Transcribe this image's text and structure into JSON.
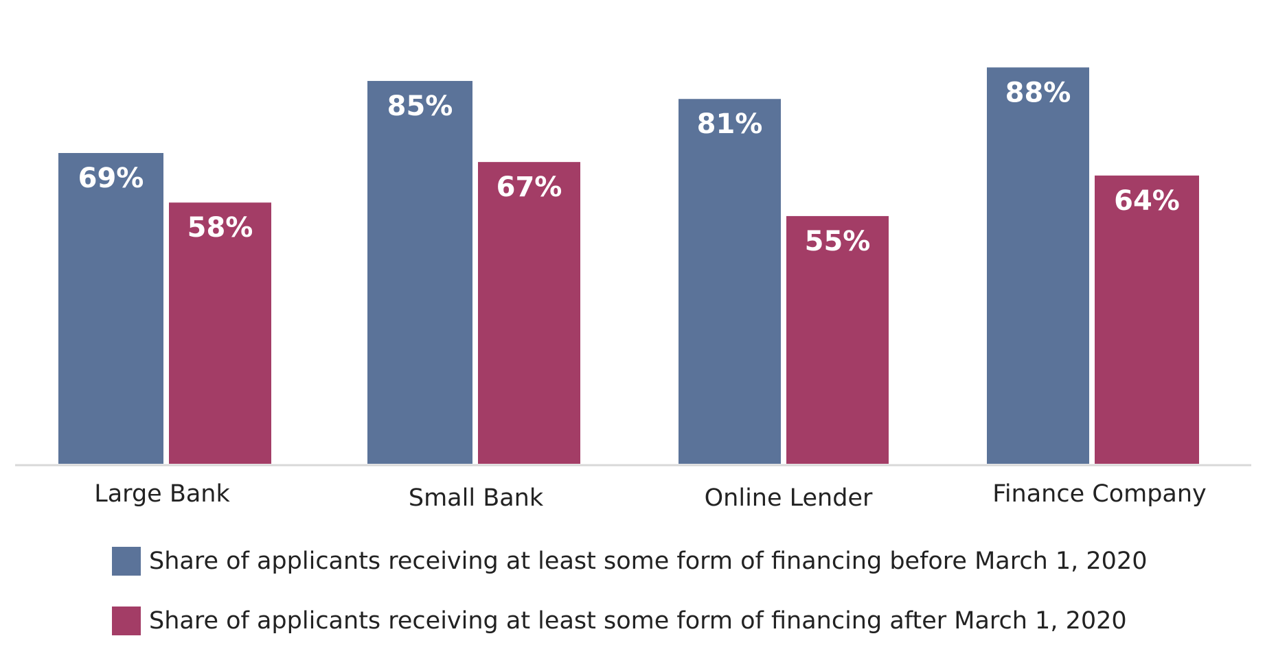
{
  "chart_data": {
    "type": "bar",
    "categories": [
      "Large Bank",
      "Small Bank",
      "Online Lender",
      "Finance Company"
    ],
    "series": [
      {
        "name": "Share of applicants receiving at least some form of financing before March 1, 2020",
        "values": [
          69,
          85,
          81,
          88
        ],
        "labels": [
          "69%",
          "85%",
          "81%",
          "88%"
        ],
        "color": "#5b7399"
      },
      {
        "name": "Share of applicants receiving at least some form of financing after March 1, 2020",
        "values": [
          58,
          67,
          55,
          64
        ],
        "labels": [
          "58%",
          "67%",
          "55%",
          "64%"
        ],
        "color": "#a33d66"
      }
    ],
    "ylim": [
      0,
      100
    ],
    "grid": false,
    "legend_position": "bottom",
    "axis_color": "#d8d8d8"
  }
}
